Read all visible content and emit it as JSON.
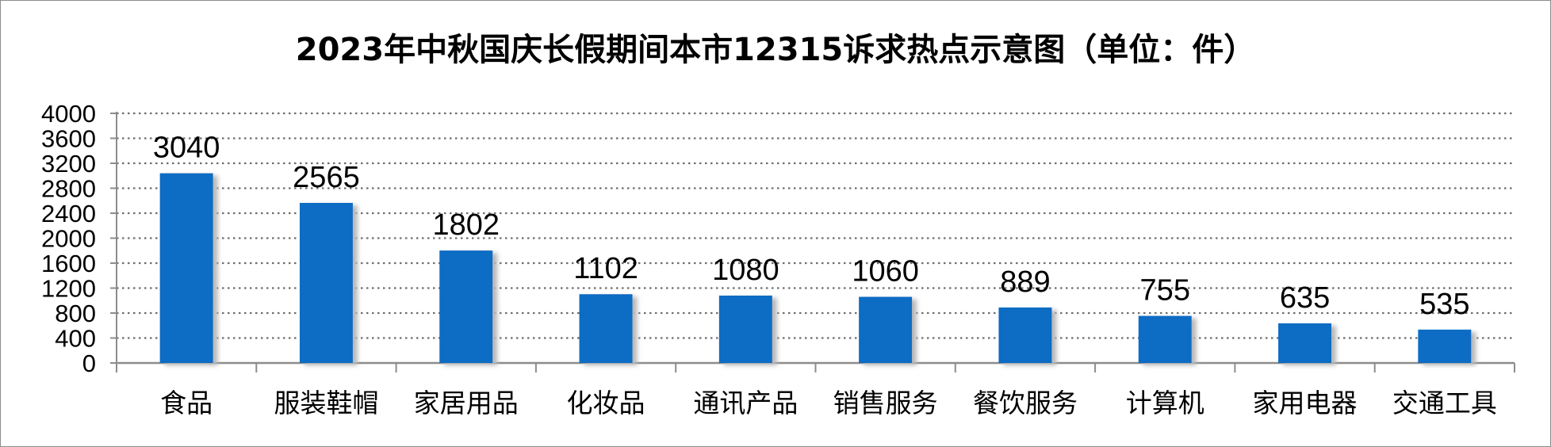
{
  "chart_data": {
    "type": "bar",
    "title": "2023年中秋国庆长假期间本市12315诉求热点示意图（单位：件）",
    "categories": [
      "食品",
      "服装鞋帽",
      "家居用品",
      "化妆品",
      "通讯产品",
      "销售服务",
      "餐饮服务",
      "计算机",
      "家用电器",
      "交通工具"
    ],
    "values": [
      3040,
      2565,
      1802,
      1102,
      1080,
      1060,
      889,
      755,
      635,
      535
    ],
    "data_labels": [
      "3040",
      "2565",
      "1802",
      "1102",
      "1080",
      "1060",
      "889",
      "755",
      "635",
      "535"
    ],
    "y_ticks": [
      "0",
      "400",
      "800",
      "1200",
      "1600",
      "2000",
      "2400",
      "2800",
      "3200",
      "3600",
      "4000"
    ],
    "ylim": [
      0,
      4000
    ],
    "xlabel": "",
    "ylabel": "",
    "grid": true,
    "grid_style": "dotted",
    "legend": "none",
    "bar_color": "#0a6cc4",
    "bar_shadow_color": "#b8b8b8",
    "axis_color": "#8c8c8c",
    "grid_color": "#6e6e6e"
  }
}
